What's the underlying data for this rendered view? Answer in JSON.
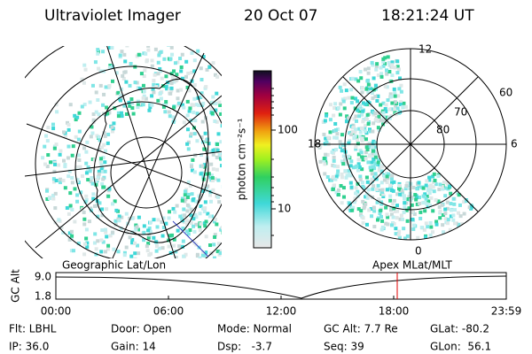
{
  "header": {
    "instrument": "Ultraviolet Imager",
    "date": "20 Oct 07",
    "time": "18:21:24 UT"
  },
  "colorbar": {
    "label": "photon cm⁻²s⁻¹",
    "ticks": [
      "100",
      "10"
    ]
  },
  "geographic": {
    "label": "Geographic Lat/Lon"
  },
  "apex": {
    "label": "Apex MLat/MLT",
    "mlt_labels": [
      "12",
      "18",
      "6",
      "0"
    ],
    "lat_labels": [
      "60",
      "70",
      "80"
    ]
  },
  "altitude": {
    "axis_label": "GC Alt",
    "ticks": [
      "9.0",
      "1.8"
    ],
    "times": [
      "00:00",
      "06:00",
      "12:00",
      "18:00",
      "23:59"
    ]
  },
  "footer": {
    "rows": [
      [
        "Flt: LBHL",
        "Door: Open",
        "Mode: Normal",
        "GC Alt: 7.7 Re",
        "GLat: -80.2"
      ],
      [
        "IP: 36.0",
        "Gain: 14",
        "Dsp:   -3.7",
        "Seq: 39",
        "GLon:  56.1"
      ]
    ]
  }
}
